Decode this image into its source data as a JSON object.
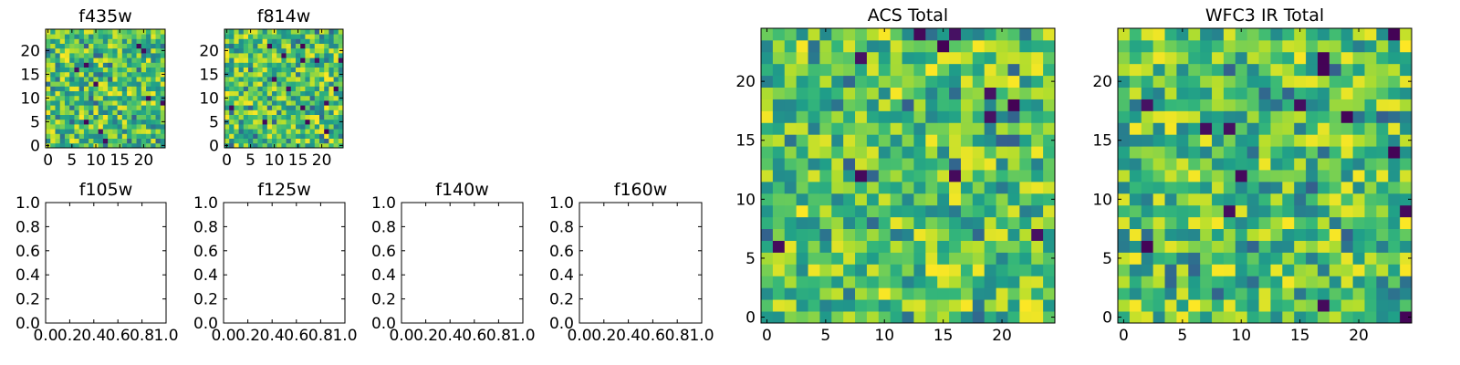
{
  "chart_data": [
    {
      "id": "f435w",
      "type": "heatmap",
      "title": "f435w",
      "rows": 25,
      "cols": 25,
      "colormap": "viridis",
      "xticks": [
        "0",
        "5",
        "10",
        "15",
        "20"
      ],
      "yticks": [
        "0",
        "5",
        "10",
        "15",
        "20"
      ],
      "seed": 435
    },
    {
      "id": "f814w",
      "type": "heatmap",
      "title": "f814w",
      "rows": 25,
      "cols": 25,
      "colormap": "viridis",
      "xticks": [
        "0",
        "5",
        "10",
        "15",
        "20"
      ],
      "yticks": [
        "0",
        "5",
        "10",
        "15",
        "20"
      ],
      "seed": 814
    },
    {
      "id": "f105w",
      "type": "empty",
      "title": "f105w",
      "xticks": [
        "0.0",
        "0.2",
        "0.4",
        "0.6",
        "0.8",
        "1.0"
      ],
      "yticks": [
        "0.0",
        "0.2",
        "0.4",
        "0.6",
        "0.8",
        "1.0"
      ]
    },
    {
      "id": "f125w",
      "type": "empty",
      "title": "f125w",
      "xticks": [
        "0.0",
        "0.2",
        "0.4",
        "0.6",
        "0.8",
        "1.0"
      ],
      "yticks": [
        "0.0",
        "0.2",
        "0.4",
        "0.6",
        "0.8",
        "1.0"
      ]
    },
    {
      "id": "f140w",
      "type": "empty",
      "title": "f140w",
      "xticks": [
        "0.0",
        "0.2",
        "0.4",
        "0.6",
        "0.8",
        "1.0"
      ],
      "yticks": [
        "0.0",
        "0.2",
        "0.4",
        "0.6",
        "0.8",
        "1.0"
      ]
    },
    {
      "id": "f160w",
      "type": "empty",
      "title": "f160w",
      "xticks": [
        "0.0",
        "0.2",
        "0.4",
        "0.6",
        "0.8",
        "1.0"
      ],
      "yticks": [
        "0.0",
        "0.2",
        "0.4",
        "0.6",
        "0.8",
        "1.0"
      ]
    },
    {
      "id": "acs-total",
      "type": "heatmap",
      "title": "ACS Total",
      "rows": 25,
      "cols": 25,
      "colormap": "viridis",
      "xticks": [
        "0",
        "5",
        "10",
        "15",
        "20"
      ],
      "yticks": [
        "0",
        "5",
        "10",
        "15",
        "20"
      ],
      "seed": 1001
    },
    {
      "id": "wfc3-ir-total",
      "type": "heatmap",
      "title": "WFC3 IR Total",
      "rows": 25,
      "cols": 25,
      "colormap": "viridis",
      "xticks": [
        "0",
        "5",
        "10",
        "15",
        "20"
      ],
      "yticks": [
        "0",
        "5",
        "10",
        "15",
        "20"
      ],
      "seed": 2002
    }
  ]
}
